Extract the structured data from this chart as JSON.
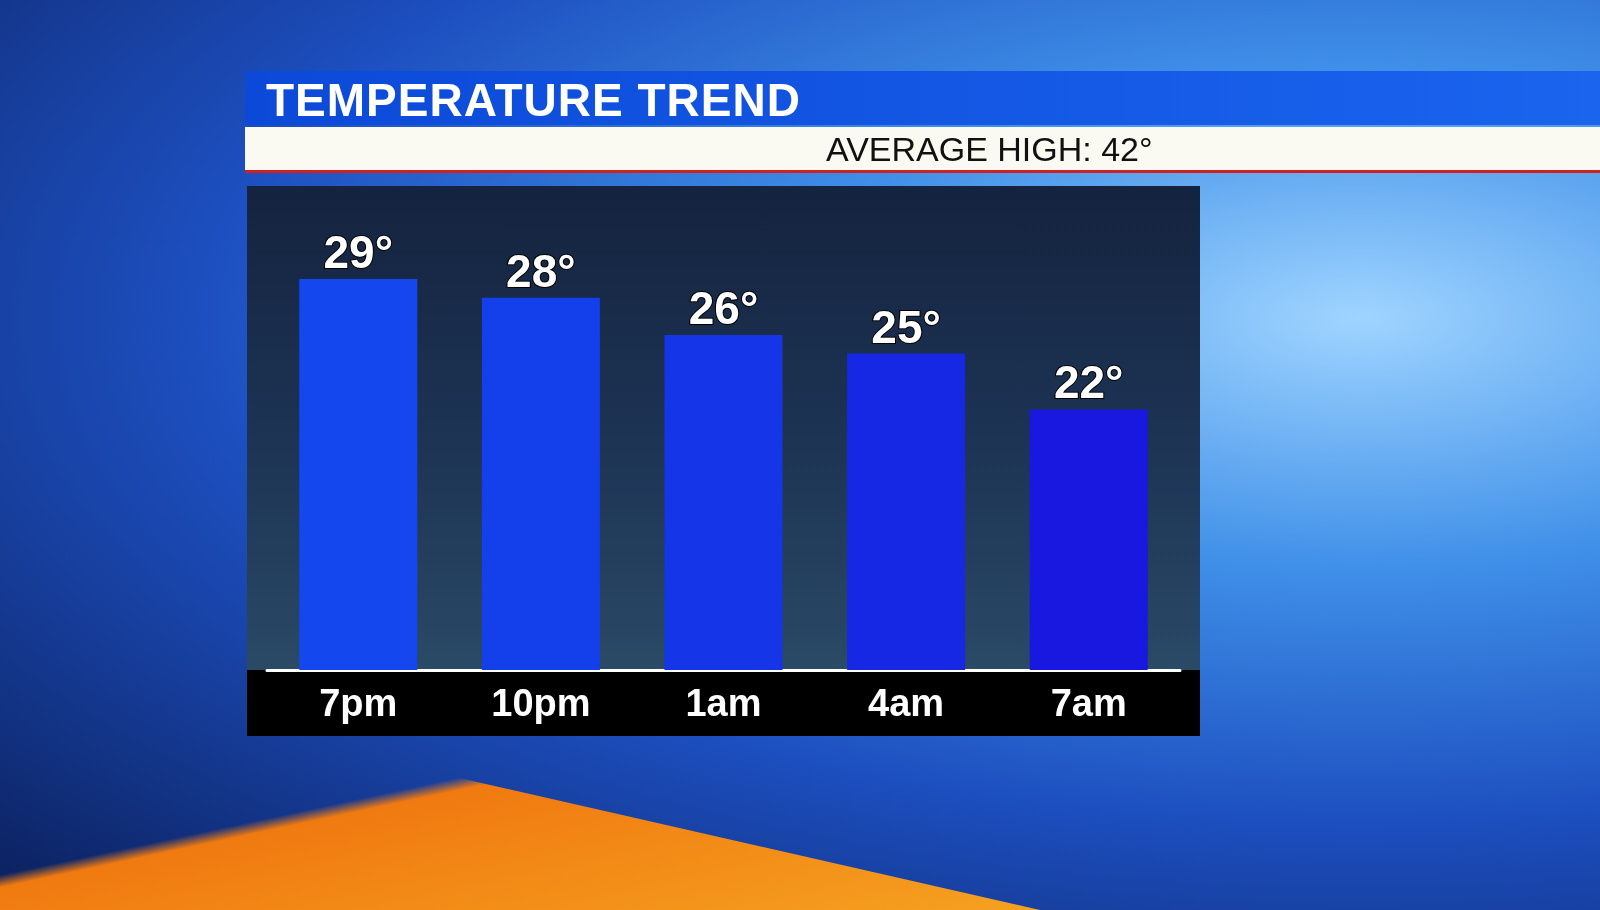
{
  "chart_data": {
    "type": "bar",
    "title": "TEMPERATURE TREND",
    "subtitle": "AVERAGE HIGH: 42°",
    "categories": [
      "7pm",
      "10pm",
      "1am",
      "4am",
      "7am"
    ],
    "values": [
      29,
      28,
      26,
      25,
      22
    ],
    "value_labels": [
      "29°",
      "28°",
      "26°",
      "25°",
      "22°"
    ],
    "colors": [
      "#1448ee",
      "#1440ec",
      "#1535e8",
      "#1628e4",
      "#1818e0"
    ],
    "ylim": [
      8,
      34
    ]
  }
}
